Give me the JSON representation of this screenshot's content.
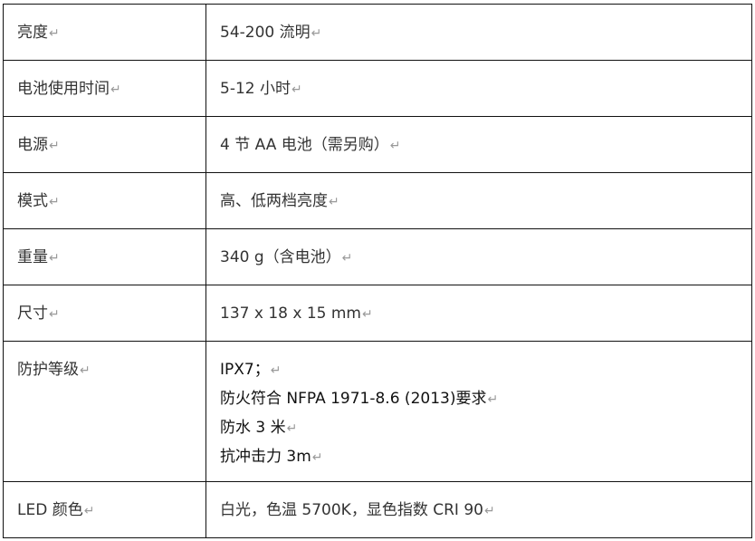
{
  "mark": "↵",
  "rows": [
    {
      "label": "亮度",
      "value": [
        "54-200 流明"
      ]
    },
    {
      "label": "电池使用时间",
      "value": [
        "5-12 小时"
      ]
    },
    {
      "label": "电源",
      "value": [
        "4 节 AA 电池（需另购）"
      ]
    },
    {
      "label": "模式",
      "value": [
        "高、低两档亮度"
      ]
    },
    {
      "label": "重量",
      "value": [
        "340 g（含电池）"
      ]
    },
    {
      "label": "尺寸",
      "value": [
        "137 x 18 x 15 mm"
      ]
    },
    {
      "label": "防护等级",
      "value": [
        "IPX7；",
        "防火符合 NFPA 1971-8.6 (2013)要求",
        "防水 3 米",
        "抗冲击力 3m"
      ]
    },
    {
      "label": "LED  颜色",
      "value": [
        "白光，色温 5700K，显色指数 CRI 90"
      ]
    }
  ]
}
